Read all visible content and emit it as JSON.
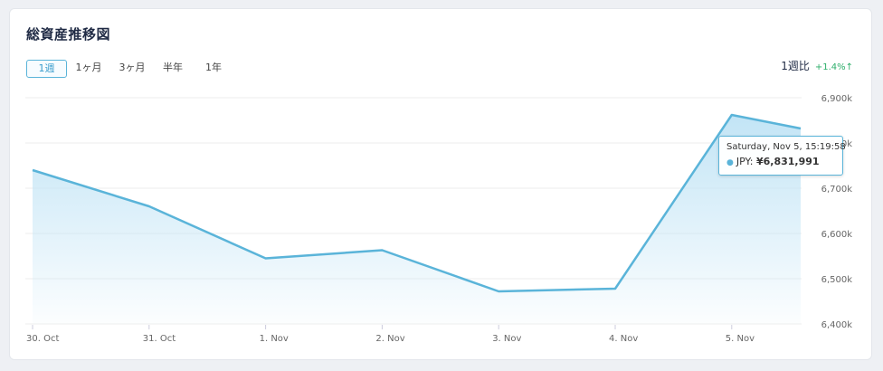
{
  "title": "総資産推移図",
  "tabs": [
    {
      "label": "1週",
      "active": true
    },
    {
      "label": "1ヶ月",
      "active": false
    },
    {
      "label": "3ヶ月",
      "active": false
    },
    {
      "label": "半年",
      "active": false
    },
    {
      "label": "1年",
      "active": false
    }
  ],
  "comparison": {
    "label": "1週比",
    "delta": "+1.4%↑",
    "delta_color": "#2dae6a"
  },
  "tooltip": {
    "datetime": "Saturday, Nov 5, 15:19:58",
    "series": "JPY:",
    "value": "¥6,831,991"
  },
  "colors": {
    "line": "#5ab4d9",
    "area_top": "#bfe3f5",
    "grid": "#eeeeee"
  },
  "chart_data": {
    "type": "area",
    "x": [
      "Oct 30",
      "Oct 31",
      "Nov 1",
      "Nov 2",
      "Nov 3",
      "Nov 4",
      "Nov 5",
      "Nov 5 15:19:58"
    ],
    "xtick_labels": [
      "30. Oct",
      "31. Oct",
      "1. Nov",
      "2. Nov",
      "3. Nov",
      "4. Nov",
      "5. Nov"
    ],
    "series": [
      {
        "name": "JPY",
        "values": [
          6740000,
          6660000,
          6545000,
          6563000,
          6472000,
          6478000,
          6862000,
          6831991
        ]
      }
    ],
    "yticks": [
      "6,400k",
      "6,500k",
      "6,600k",
      "6,700k",
      "6,800k",
      "6,900k"
    ],
    "ylim": [
      6400000,
      6900000
    ],
    "ylabel_side": "right",
    "grid": true
  }
}
